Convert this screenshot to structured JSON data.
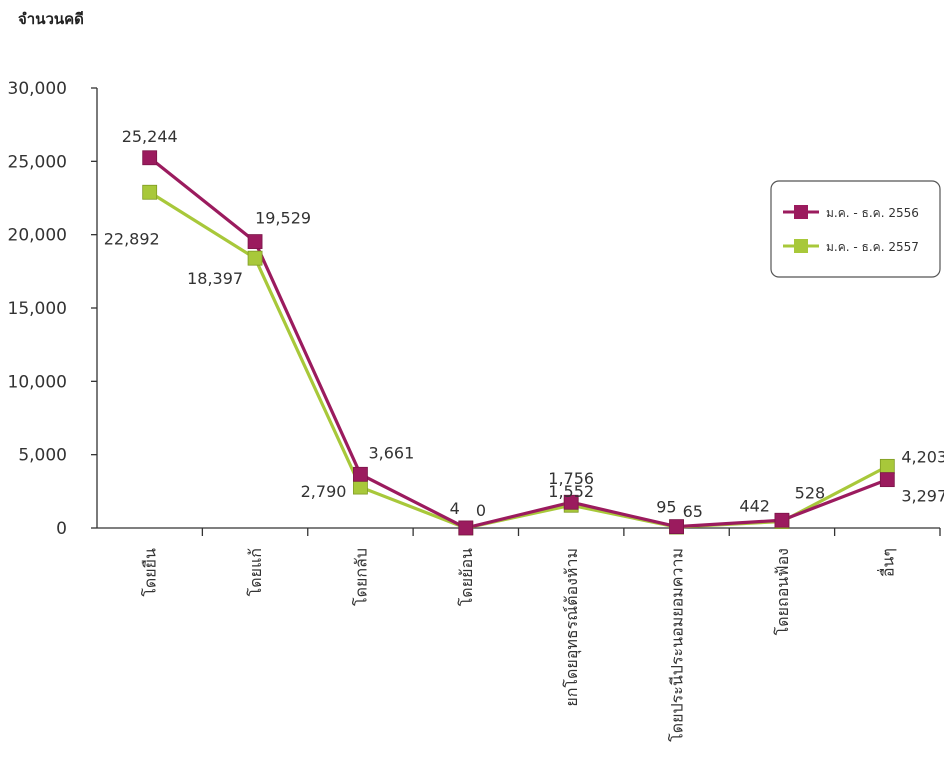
{
  "chart_data": {
    "type": "line",
    "ylabel": "จำนวนคดี",
    "xlabel": "",
    "ylim": [
      0,
      30000
    ],
    "yticks": [
      0,
      5000,
      10000,
      15000,
      20000,
      25000,
      30000
    ],
    "ytick_labels": [
      "0",
      "5,000",
      "10,000",
      "15,000",
      "20,000",
      "25,000",
      "30,000"
    ],
    "categories": [
      "โดยยืน",
      "โดยแก้",
      "โดยกลับ",
      "โดยย้อน",
      "ยกโดยอุทธรณ์ต้องห้าม",
      "โดยประนีประนอมยอมความ",
      "โดยถอนฟ้อง",
      "อื่นๆ"
    ],
    "series": [
      {
        "name": "ม.ค. - ธ.ค. 2556",
        "color": "#9b1b5e",
        "values": [
          25244,
          19529,
          3661,
          4,
          1756,
          95,
          528,
          3297
        ],
        "value_labels": [
          "25,244",
          "19,529",
          "3,661",
          "4",
          "1,756",
          "95",
          "528",
          "3,297"
        ]
      },
      {
        "name": "ม.ค. - ธ.ค. 2557",
        "color": "#a8c83a",
        "values": [
          22892,
          18397,
          2790,
          0,
          1552,
          65,
          442,
          4203
        ],
        "value_labels": [
          "22,892",
          "18,397",
          "2,790",
          "0",
          "1,552",
          "65",
          "442",
          "4,203"
        ]
      }
    ],
    "grid": false,
    "legend_position": "right"
  }
}
